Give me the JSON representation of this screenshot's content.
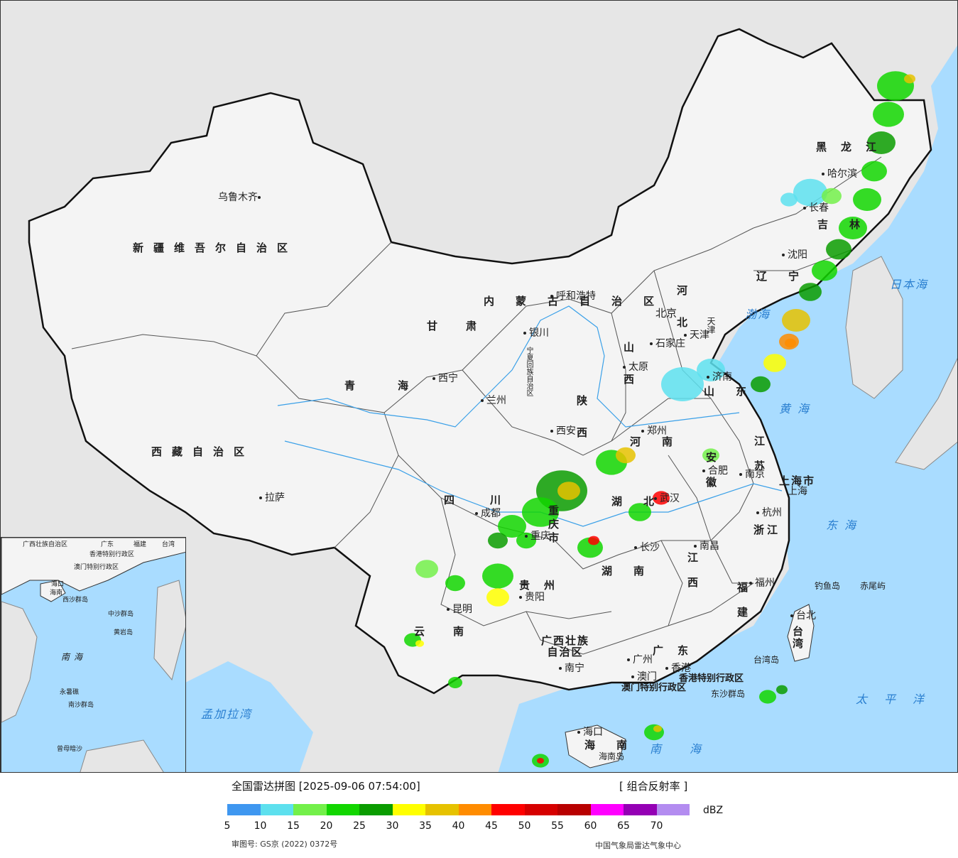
{
  "map": {
    "regions": [
      {
        "name": "新疆维吾尔自治区"
      },
      {
        "name": "西藏自治区"
      },
      {
        "name": "青海"
      },
      {
        "name": "甘肃"
      },
      {
        "name": "内蒙古自治区"
      },
      {
        "name": "黑龙江"
      },
      {
        "name": "吉林"
      },
      {
        "name": "辽宁"
      },
      {
        "name": "河北"
      },
      {
        "name": "山西"
      },
      {
        "name": "陕西"
      },
      {
        "name": "宁夏回族自治区"
      },
      {
        "name": "四川"
      },
      {
        "name": "重庆市"
      },
      {
        "name": "贵州"
      },
      {
        "name": "云南"
      },
      {
        "name": "广西壮族自治区"
      },
      {
        "name": "广东"
      },
      {
        "name": "湖南"
      },
      {
        "name": "湖北"
      },
      {
        "name": "河南"
      },
      {
        "name": "山东"
      },
      {
        "name": "江苏"
      },
      {
        "name": "安徽"
      },
      {
        "name": "浙江"
      },
      {
        "name": "江西"
      },
      {
        "name": "福建"
      },
      {
        "name": "台湾"
      },
      {
        "name": "海南"
      },
      {
        "name": "上海市"
      },
      {
        "name": "天津"
      },
      {
        "name": "香港特别行政区"
      },
      {
        "name": "澳门特别行政区"
      }
    ],
    "cities": [
      "乌鲁木齐",
      "拉萨",
      "西宁",
      "兰州",
      "银川",
      "呼和浩特",
      "北京",
      "天津",
      "石家庄",
      "太原",
      "西安",
      "郑州",
      "济南",
      "南京",
      "合肥",
      "上海",
      "杭州",
      "武汉",
      "长沙",
      "南昌",
      "福州",
      "台北",
      "成都",
      "重庆",
      "贵阳",
      "昆明",
      "南宁",
      "广州",
      "香港",
      "澳门",
      "海口",
      "哈尔滨",
      "长春",
      "沈阳"
    ],
    "seas": [
      "日本海",
      "渤海",
      "黄海",
      "东海",
      "太平洋",
      "南海",
      "孟加拉湾"
    ],
    "islands": [
      "钓鱼岛",
      "赤尾屿",
      "台湾岛",
      "东沙群岛",
      "海南岛"
    ],
    "inset": {
      "labels": [
        "广西壮族自治区",
        "广东",
        "福建",
        "台湾",
        "香港特别行政区",
        "澳门特别行政区",
        "海口",
        "海南",
        "西沙群岛",
        "中沙群岛",
        "黄岩岛",
        "南海",
        "永暑礁",
        "南沙群岛",
        "曾母暗沙"
      ]
    }
  },
  "footer": {
    "title": "全国雷达拼图 [2025-09-06 07:54:00]",
    "product": "[ 组合反射率 ]",
    "unit": "dBZ",
    "approval": "审图号: GS京 (2022) 0372号",
    "source": "中国气象局雷达气象中心"
  },
  "legend": {
    "colors": [
      "#3f97f0",
      "#5de0ee",
      "#73f04a",
      "#12d600",
      "#0a9c00",
      "#ffff00",
      "#e6c200",
      "#ff8c00",
      "#ff0000",
      "#d60000",
      "#b80000",
      "#ff00ff",
      "#9400b4",
      "#b38cf0"
    ],
    "ticks": [
      "5",
      "10",
      "15",
      "20",
      "25",
      "30",
      "35",
      "40",
      "45",
      "50",
      "55",
      "60",
      "65",
      "70"
    ]
  },
  "colors": {
    "land": "#f4f4f4",
    "ocean": "#a9dcff",
    "border": "#111111",
    "foreign": "#e6e6e6",
    "river": "#3aa0e8"
  }
}
